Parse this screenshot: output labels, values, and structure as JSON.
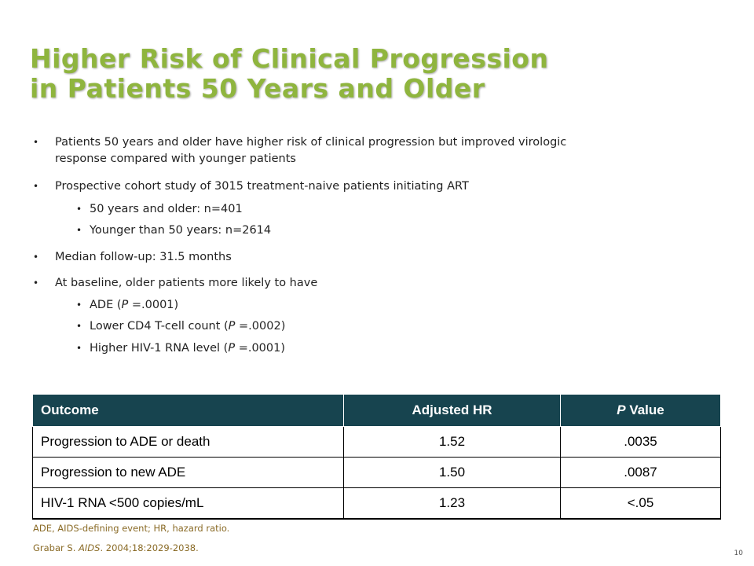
{
  "slide": {
    "title_line1": "Higher Risk of Clinical Progression",
    "title_line2": "in Patients 50 Years and Older",
    "bullets": [
      {
        "line1": "Patients 50 years and older have higher risk of clinical progression  but improved virologic",
        "line2": "response  compared with younger  patients"
      },
      {
        "text": "Prospective cohort study of 3015 treatment-naive  patients initiating ART"
      },
      {
        "text": "50 years and older: n=401"
      },
      {
        "text": "Younger than 50 years: n=2614"
      },
      {
        "text": "Median follow-up: 31.5 months"
      },
      {
        "text": "At baseline, older patients more likely to have"
      },
      {
        "text": "ADE (",
        "p": "P",
        "rest": " =.0001)"
      },
      {
        "text": "Lower CD4 T-cell count (",
        "p": "P",
        "rest": " =.0002)"
      },
      {
        "text": "Higher HIV-1 RNA level (",
        "p": "P",
        "rest": " =.0001)"
      }
    ],
    "bullet_glyph": "•",
    "table": {
      "headers": {
        "outcome": "Outcome",
        "hr": "Adjusted HR",
        "p_italic": "P",
        "p_rest": " Value"
      },
      "rows": [
        {
          "outcome": "Progression to ADE or death",
          "hr": "1.52",
          "p": ".0035"
        },
        {
          "outcome": "Progression to new ADE",
          "hr": "1.50",
          "p": ".0087"
        },
        {
          "outcome": "HIV-1 RNA <500 copies/mL",
          "hr": "1.23",
          "p": "<.05"
        }
      ]
    },
    "footnote": "ADE, AIDS-defining event; HR, hazard ratio.",
    "citation": {
      "author": "Grabar S. ",
      "journal": "AIDS",
      "rest": ". 2004;18:2029-2038."
    },
    "page_number": "10",
    "colors": {
      "title": "#8fb53e",
      "table_header_bg": "#17444f",
      "footnote": "#8a6b27"
    }
  }
}
